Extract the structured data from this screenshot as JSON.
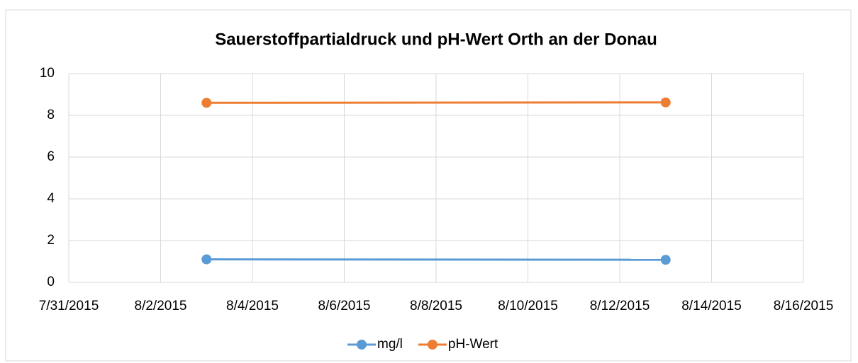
{
  "chart_data": {
    "type": "line",
    "title": "Sauerstoffpartialdruck und pH-Wert Orth an der Donau",
    "x": [
      "8/3/2015",
      "8/13/2015"
    ],
    "series": [
      {
        "name": "mg/l",
        "color": "#5b9bd5",
        "values": [
          1.1,
          1.08
        ]
      },
      {
        "name": "pH-Wert",
        "color": "#ed7d31",
        "values": [
          8.6,
          8.62
        ]
      }
    ],
    "xlim": [
      "7/31/2015",
      "8/16/2015"
    ],
    "xticks": [
      "7/31/2015",
      "8/2/2015",
      "8/4/2015",
      "8/6/2015",
      "8/8/2015",
      "8/10/2015",
      "8/12/2015",
      "8/14/2015",
      "8/16/2015"
    ],
    "ylim": [
      0,
      10
    ],
    "yticks": [
      0,
      2,
      4,
      6,
      8,
      10
    ],
    "grid": true,
    "legend": "bottom"
  }
}
